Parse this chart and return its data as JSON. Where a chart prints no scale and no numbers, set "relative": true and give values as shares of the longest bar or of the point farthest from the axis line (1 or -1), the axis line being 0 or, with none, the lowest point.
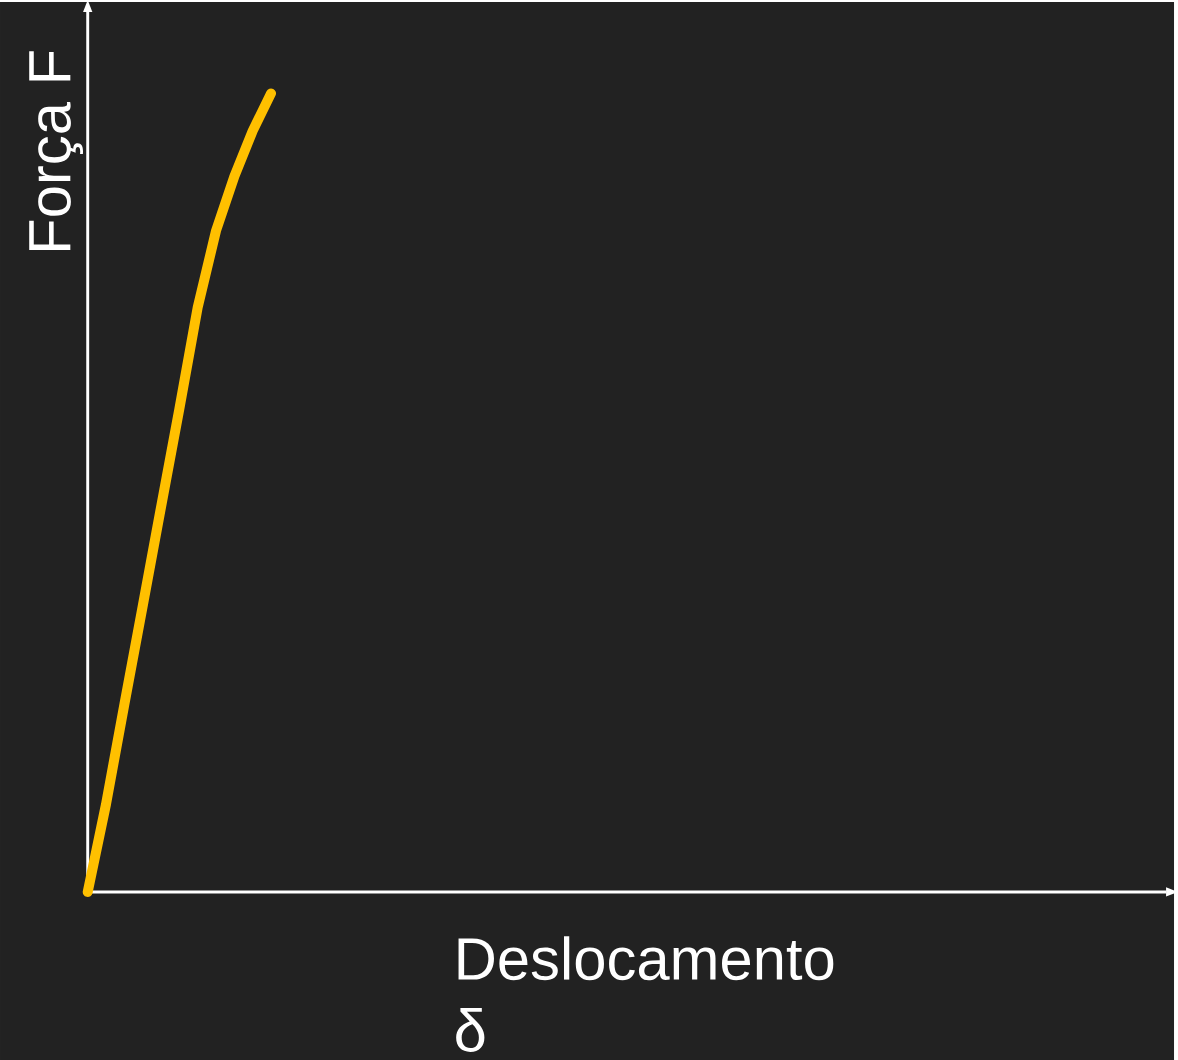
{
  "chart_data": {
    "type": "line",
    "xlabel": "Deslocamento δ",
    "ylabel": "Força F",
    "relative": true,
    "categories": [
      null,
      null,
      null,
      null,
      null,
      null,
      null,
      null,
      null,
      null,
      null
    ],
    "values": [
      0,
      0.11,
      0.235,
      0.358,
      0.482,
      0.605,
      0.732,
      0.828,
      0.896,
      0.953,
      1.0
    ],
    "color": "#ffc000",
    "line_style": "solid"
  }
}
